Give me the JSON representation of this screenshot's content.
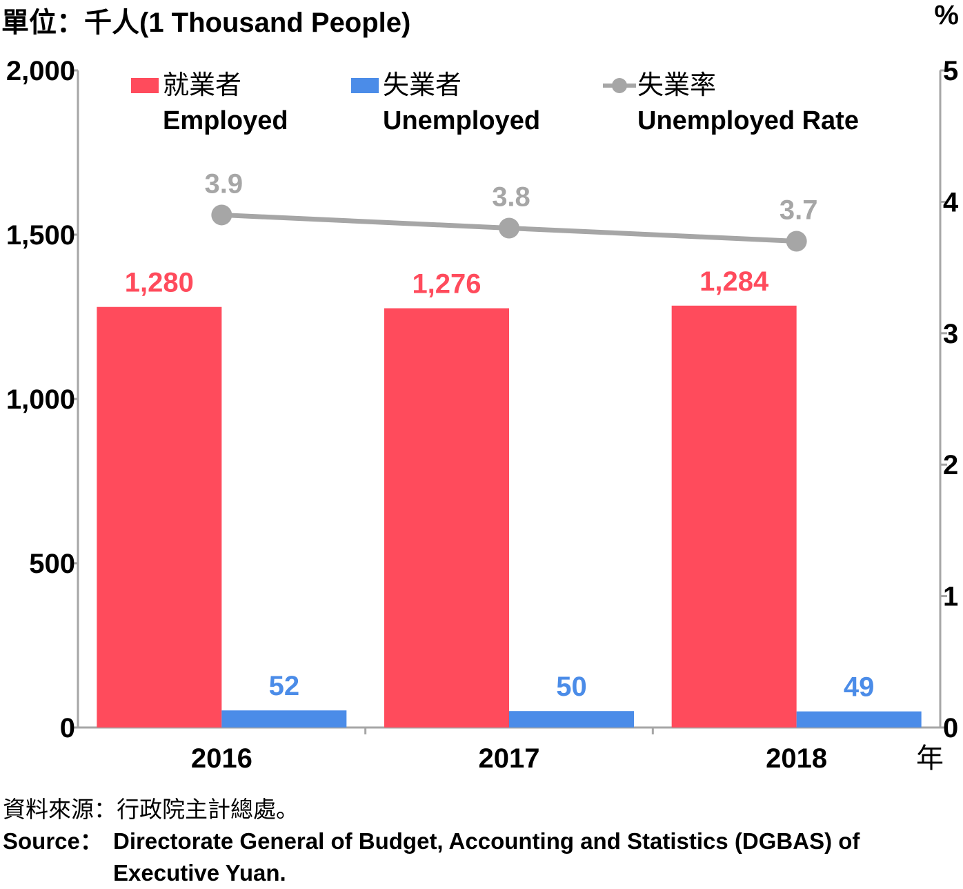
{
  "unit_label": "單位：千人(1 Thousand People)",
  "right_unit": "%",
  "x_unit": "年",
  "source": {
    "zh": "資料來源：行政院主計總處。",
    "en_label": "Source：",
    "en_text_1": "Directorate General of Budget, Accounting and Statistics (DGBAS) of",
    "en_text_2": "Executive Yuan."
  },
  "legend": [
    {
      "zh": "就業者",
      "en": "Employed",
      "color": "#ff4b5c"
    },
    {
      "zh": "失業者",
      "en": "Unemployed",
      "color": "#4b8ce8"
    },
    {
      "zh": "失業率",
      "en": "Unemployed Rate",
      "color": "#a6a6a6"
    }
  ],
  "chart_data": {
    "type": "bar",
    "categories": [
      "2016",
      "2017",
      "2018"
    ],
    "series": [
      {
        "name": "就業者 Employed",
        "type": "bar",
        "axis": "left",
        "color": "#ff4b5c",
        "values": [
          1280,
          1276,
          1284
        ],
        "labels": [
          "1,280",
          "1,276",
          "1,284"
        ]
      },
      {
        "name": "失業者 Unemployed",
        "type": "bar",
        "axis": "left",
        "color": "#4b8ce8",
        "values": [
          52,
          50,
          49
        ],
        "labels": [
          "52",
          "50",
          "49"
        ]
      },
      {
        "name": "失業率 Unemployed Rate",
        "type": "line",
        "axis": "right",
        "color": "#a6a6a6",
        "values": [
          3.9,
          3.8,
          3.7
        ],
        "labels": [
          "3.9",
          "3.8",
          "3.7"
        ]
      }
    ],
    "y_left": {
      "range": [
        0,
        2000
      ],
      "ticks": [
        "0",
        "500",
        "1,000",
        "1,500",
        "2,000"
      ]
    },
    "y_right": {
      "range": [
        0,
        5
      ],
      "ticks": [
        "0",
        "1",
        "2",
        "3",
        "4",
        "5"
      ]
    },
    "grid": false,
    "legend_position": "top"
  }
}
